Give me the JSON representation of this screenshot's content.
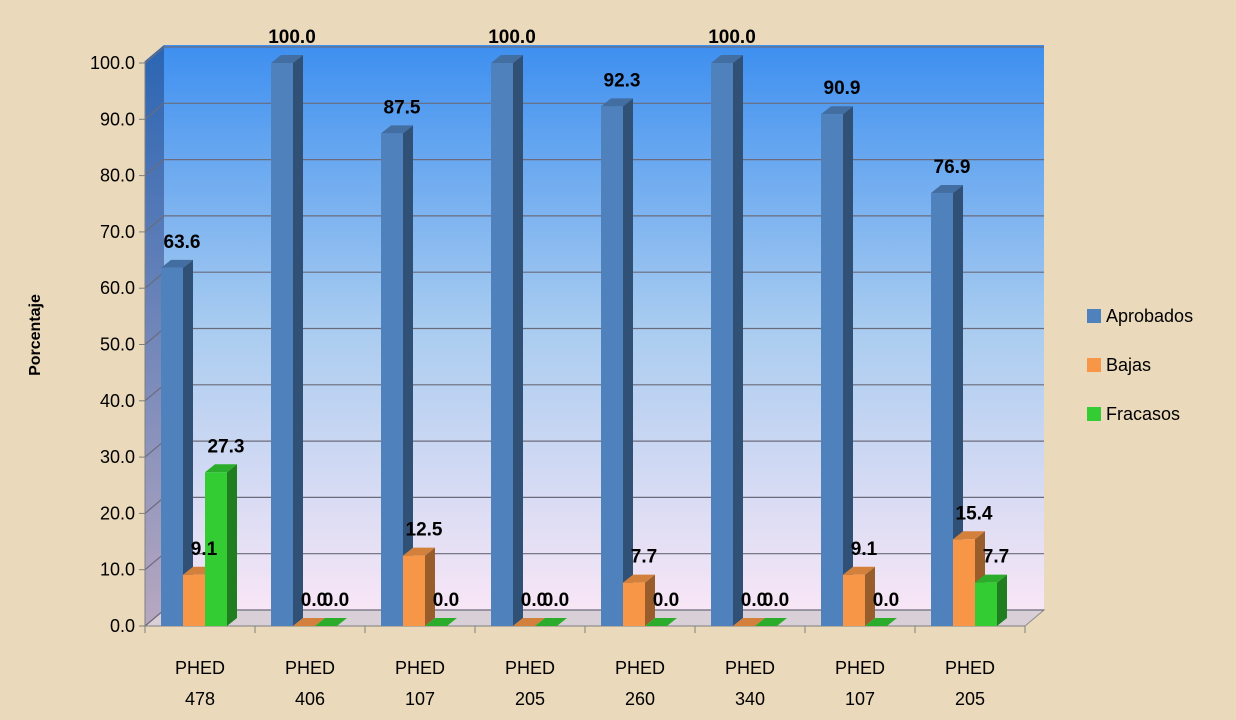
{
  "chart_data": {
    "type": "bar",
    "title": "",
    "xlabel": "",
    "ylabel": "Porcentaje",
    "ylim": [
      0,
      100
    ],
    "yticks": [
      "0.0",
      "10.0",
      "20.0",
      "30.0",
      "40.0",
      "50.0",
      "60.0",
      "70.0",
      "80.0",
      "90.0",
      "100.0"
    ],
    "categories": [
      [
        "PHED",
        "478"
      ],
      [
        "PHED",
        "406"
      ],
      [
        "PHED",
        "107"
      ],
      [
        "PHED",
        "205"
      ],
      [
        "PHED",
        "260"
      ],
      [
        "PHED",
        "340"
      ],
      [
        "PHED",
        "107"
      ],
      [
        "PHED",
        "205"
      ]
    ],
    "series": [
      {
        "name": "Aprobados",
        "color": "#4f81bd",
        "values": [
          63.6,
          100.0,
          87.5,
          100.0,
          92.3,
          100.0,
          90.9,
          76.9
        ],
        "labels": [
          "63.6",
          "100.0",
          "87.5",
          "100.0",
          "92.3",
          "100.0",
          "90.9",
          "76.9"
        ]
      },
      {
        "name": "Bajas",
        "color": "#f79646",
        "values": [
          9.1,
          0.0,
          12.5,
          0.0,
          7.7,
          0.0,
          9.1,
          15.4
        ],
        "labels": [
          "9.1",
          "0.0",
          "12.5",
          "0.0",
          "7.7",
          "0.0",
          "9.1",
          "15.4"
        ]
      },
      {
        "name": "Fracasos",
        "color": "#33cc33",
        "values": [
          27.3,
          0.0,
          0.0,
          0.0,
          0.0,
          0.0,
          0.0,
          7.7
        ],
        "labels": [
          "27.3",
          "0.0",
          "0.0",
          "0.0",
          "0.0",
          "0.0",
          "0.0",
          "7.7"
        ]
      }
    ],
    "grid": true,
    "legend": "right",
    "three_d": true,
    "background_gradient": [
      "#3b8ef0",
      "#f8e8f8"
    ],
    "page_background": "#ead9bb"
  }
}
